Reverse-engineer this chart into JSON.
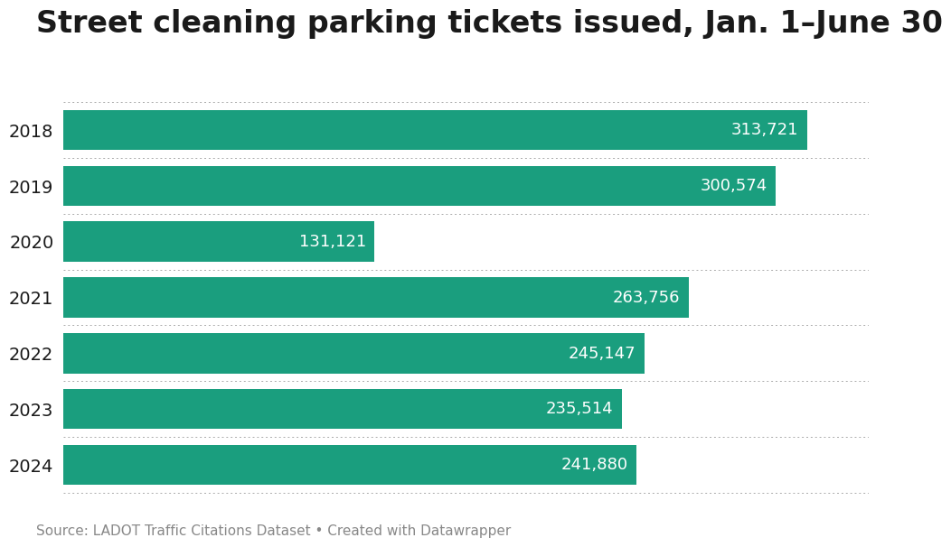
{
  "title": "Street cleaning parking tickets issued, Jan. 1–June 30",
  "years": [
    "2018",
    "2019",
    "2020",
    "2021",
    "2022",
    "2023",
    "2024"
  ],
  "values": [
    313721,
    300574,
    131121,
    263756,
    245147,
    235514,
    241880
  ],
  "bar_color": "#1a9e7e",
  "label_color": "#ffffff",
  "title_color": "#1a1a1a",
  "background_color": "#ffffff",
  "source_text": "Source: LADOT Traffic Citations Dataset • Created with Datawrapper",
  "title_fontsize": 24,
  "label_fontsize": 13,
  "year_fontsize": 14,
  "source_fontsize": 11,
  "xlim": [
    0,
    340000
  ],
  "bar_height": 0.72
}
